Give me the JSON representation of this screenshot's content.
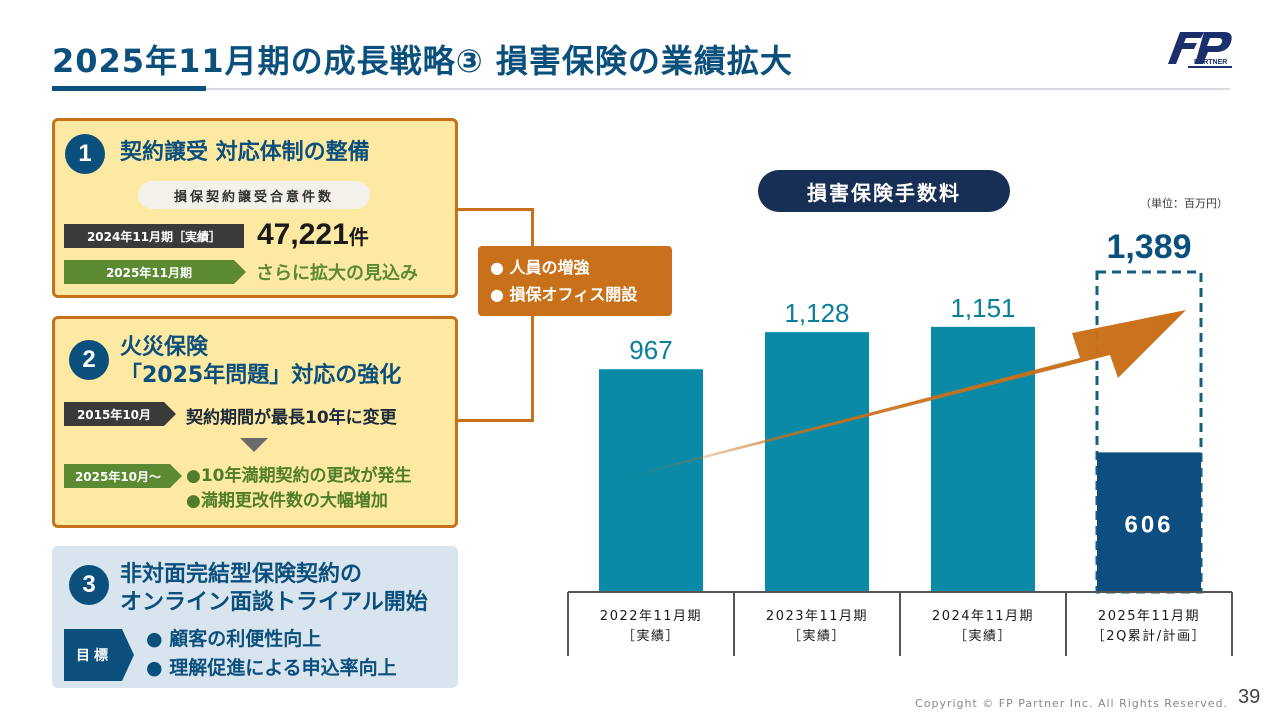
{
  "title": "2025年11月期の成長戦略③ 損害保険の業績拡大",
  "logo": {
    "text": "FP",
    "sub": "PARTNER"
  },
  "panel1": {
    "num": "1",
    "heading": "契約譲受 対応体制の整備",
    "pill": "損保契約譲受合意件数",
    "tag_actual": "2024年11月期［実績］",
    "value": "47,221",
    "value_unit": "件",
    "tag_forecast": "2025年11月期",
    "forecast_text": "さらに拡大の見込み"
  },
  "panel2": {
    "num": "2",
    "heading_line1": "火災保険",
    "heading_line2": "「2025年問題」対応の強化",
    "tag_2015": "2015年10月",
    "text_2015": "契約期間が最長10年に変更",
    "tag_2025": "2025年10月～",
    "bullets": [
      "●10年満期契約の更改が発生",
      "●満期更改件数の大幅増加"
    ]
  },
  "panel3": {
    "num": "3",
    "heading_line1": "非対面完結型保険契約の",
    "heading_line2": "オンライン面談トライアル開始",
    "tag": "目標",
    "bullets": [
      "● 顧客の利便性向上",
      "● 理解促進による申込率向上"
    ]
  },
  "orange_box": {
    "items": [
      "● 人員の増強",
      "● 損保オフィス開設"
    ]
  },
  "chart_title": "損害保険手数料",
  "unit_note": "（単位：百万円）",
  "chart_data": {
    "type": "bar",
    "title": "損害保険手数料",
    "unit": "百万円",
    "categories": [
      [
        "2022年11月期",
        "［実績］"
      ],
      [
        "2023年11月期",
        "［実績］"
      ],
      [
        "2024年11月期",
        "［実績］"
      ],
      [
        "2025年11月期",
        "［2Q累計/計画］"
      ]
    ],
    "values": [
      967,
      1128,
      1151,
      606
    ],
    "labels": [
      "967",
      "1,128",
      "1,151",
      "606"
    ],
    "plan": {
      "category_index": 3,
      "value": 1389,
      "label": "1,389"
    },
    "colors": {
      "actual": "#0a8aa6",
      "ytd": "#0d4d80",
      "plan_outline": "#155f80",
      "arrow": "#c9701a"
    },
    "ylim": [
      0,
      1389
    ]
  },
  "footer": "Copyright © FP Partner Inc. All Rights Reserved.",
  "page_number": "39"
}
